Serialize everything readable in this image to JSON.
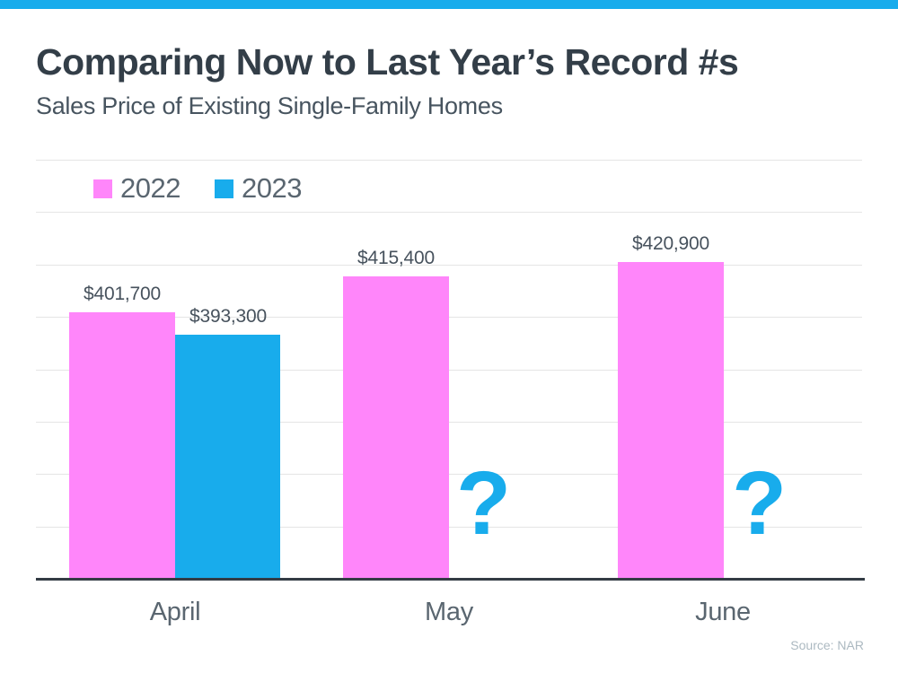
{
  "page": {
    "accent_color": "#18ACEC"
  },
  "header": {
    "title": "Comparing Now to Last Year’s Record #s",
    "subtitle": "Sales Price of Existing Single-Family Homes"
  },
  "footer": {
    "source": "Source: NAR"
  },
  "chart_data": {
    "type": "bar",
    "title": "Comparing Now to Last Year’s Record #s",
    "subtitle": "Sales Price of Existing Single-Family Homes",
    "categories": [
      "April",
      "May",
      "June"
    ],
    "series": [
      {
        "name": "2022",
        "color": "#FF86FA",
        "values": [
          401700,
          415400,
          420900
        ],
        "labels": [
          "$401,700",
          "$415,400",
          "$420,900"
        ]
      },
      {
        "name": "2023",
        "color": "#18ACEC",
        "values": [
          393300,
          null,
          null
        ],
        "labels": [
          "$393,300",
          "?",
          "?"
        ]
      }
    ],
    "unknown_marker": "?",
    "ylim": [
      300000,
      460000
    ],
    "gridline_step": 20000,
    "grid": true,
    "legend_position": "top-left",
    "source": "Source: NAR"
  }
}
